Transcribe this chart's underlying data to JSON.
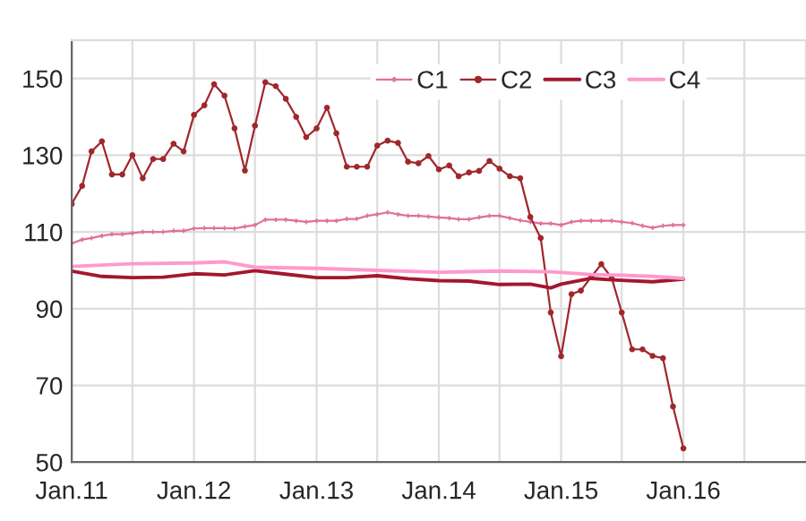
{
  "chart_data": {
    "type": "line",
    "x": [
      "2011-01",
      "2011-02",
      "2011-03",
      "2011-04",
      "2011-05",
      "2011-06",
      "2011-07",
      "2011-08",
      "2011-09",
      "2011-10",
      "2011-11",
      "2011-12",
      "2012-01",
      "2012-02",
      "2012-03",
      "2012-04",
      "2012-05",
      "2012-06",
      "2012-07",
      "2012-08",
      "2012-09",
      "2012-10",
      "2012-11",
      "2012-12",
      "2013-01",
      "2013-02",
      "2013-03",
      "2013-04",
      "2013-05",
      "2013-06",
      "2013-07",
      "2013-08",
      "2013-09",
      "2013-10",
      "2013-11",
      "2013-12",
      "2014-01",
      "2014-02",
      "2014-03",
      "2014-04",
      "2014-05",
      "2014-06",
      "2014-07",
      "2014-08",
      "2014-09",
      "2014-10",
      "2014-11",
      "2014-12",
      "2015-01",
      "2015-02",
      "2015-03",
      "2015-04",
      "2015-05",
      "2015-06",
      "2015-07",
      "2015-08",
      "2015-09",
      "2015-10",
      "2015-11",
      "2015-12",
      "2016-01"
    ],
    "series": [
      {
        "name": "C1",
        "color": "#e0709a",
        "marker": "cross",
        "values": [
          107,
          108,
          108.4,
          109,
          109.4,
          109.4,
          109.7,
          110,
          110,
          110,
          110.3,
          110.3,
          110.9,
          111,
          111,
          111,
          110.9,
          111.4,
          111.8,
          113.2,
          113.2,
          113.2,
          112.9,
          112.6,
          112.9,
          112.9,
          112.9,
          113.4,
          113.4,
          114.2,
          114.6,
          115.1,
          114.6,
          114.2,
          114.2,
          114,
          113.8,
          113.6,
          113.3,
          113.3,
          113.8,
          114.2,
          114.2,
          113.6,
          113,
          112.6,
          112.2,
          112.2,
          111.8,
          112.6,
          112.9,
          112.9,
          112.9,
          112.9,
          112.6,
          112.3,
          111.6,
          111.1,
          111.6,
          111.8,
          111.8
        ]
      },
      {
        "name": "C2",
        "color": "#a0282d",
        "marker": "circle",
        "values": [
          117.3,
          122,
          131,
          133.6,
          125,
          125,
          130,
          124,
          129,
          129,
          133,
          131,
          140.5,
          143,
          148.5,
          145.5,
          137,
          126,
          137.7,
          149,
          148,
          144.7,
          140,
          134.7,
          137,
          142.4,
          135.7,
          127,
          127,
          127,
          132.5,
          133.8,
          133.2,
          128.3,
          127.9,
          129.8,
          126.3,
          127.3,
          124.5,
          125.5,
          125.9,
          128.5,
          126.5,
          124.5,
          124,
          113.9,
          108.4,
          89,
          77.6,
          93.8,
          94.7,
          98.3,
          101.6,
          98,
          89,
          79.4,
          79.4,
          77.7,
          77.1,
          64.5,
          53.6
        ]
      },
      {
        "name": "C3",
        "color": "#a3172e",
        "marker": "none",
        "x": [
          "2011-01",
          "2011-04",
          "2011-07",
          "2011-10",
          "2012-01",
          "2012-04",
          "2012-07",
          "2012-10",
          "2013-01",
          "2013-04",
          "2013-07",
          "2013-10",
          "2014-01",
          "2014-04",
          "2014-07",
          "2014-10",
          "2014-12",
          "2015-01",
          "2015-04",
          "2015-06",
          "2015-10",
          "2016-01"
        ],
        "values": [
          99.8,
          98.4,
          98.1,
          98.2,
          99.1,
          98.8,
          99.9,
          99,
          98.1,
          98.1,
          98.6,
          97.8,
          97.3,
          97.2,
          96.3,
          96.4,
          95.4,
          96.4,
          97.9,
          97.5,
          97,
          97.7
        ]
      },
      {
        "name": "C4",
        "color": "#ff99cc",
        "marker": "none",
        "x": [
          "2011-01",
          "2011-07",
          "2012-01",
          "2012-04",
          "2012-07",
          "2013-01",
          "2013-07",
          "2014-01",
          "2014-07",
          "2014-12",
          "2015-04",
          "2015-07",
          "2015-10",
          "2016-01"
        ],
        "values": [
          101,
          101.7,
          101.9,
          102.2,
          100.8,
          100.5,
          100,
          99.5,
          99.8,
          99.6,
          98.9,
          98.7,
          98.4,
          97.9
        ]
      }
    ],
    "xlim": [
      "2011-01",
      "2017-01"
    ],
    "xticks": [
      {
        "value": "2011-01",
        "label": "Jan.11"
      },
      {
        "value": "2011-07",
        "label": null
      },
      {
        "value": "2012-01",
        "label": "Jan.12"
      },
      {
        "value": "2012-07",
        "label": null
      },
      {
        "value": "2013-01",
        "label": "Jan.13"
      },
      {
        "value": "2013-07",
        "label": null
      },
      {
        "value": "2014-01",
        "label": "Jan.14"
      },
      {
        "value": "2014-07",
        "label": null
      },
      {
        "value": "2015-01",
        "label": "Jan.15"
      },
      {
        "value": "2015-07",
        "label": null
      },
      {
        "value": "2016-01",
        "label": "Jan.16"
      },
      {
        "value": "2016-07",
        "label": null
      }
    ],
    "ylim": [
      50,
      160
    ],
    "yticks": [
      50,
      70,
      90,
      110,
      130,
      150
    ],
    "grid": true,
    "legend": "top right"
  }
}
